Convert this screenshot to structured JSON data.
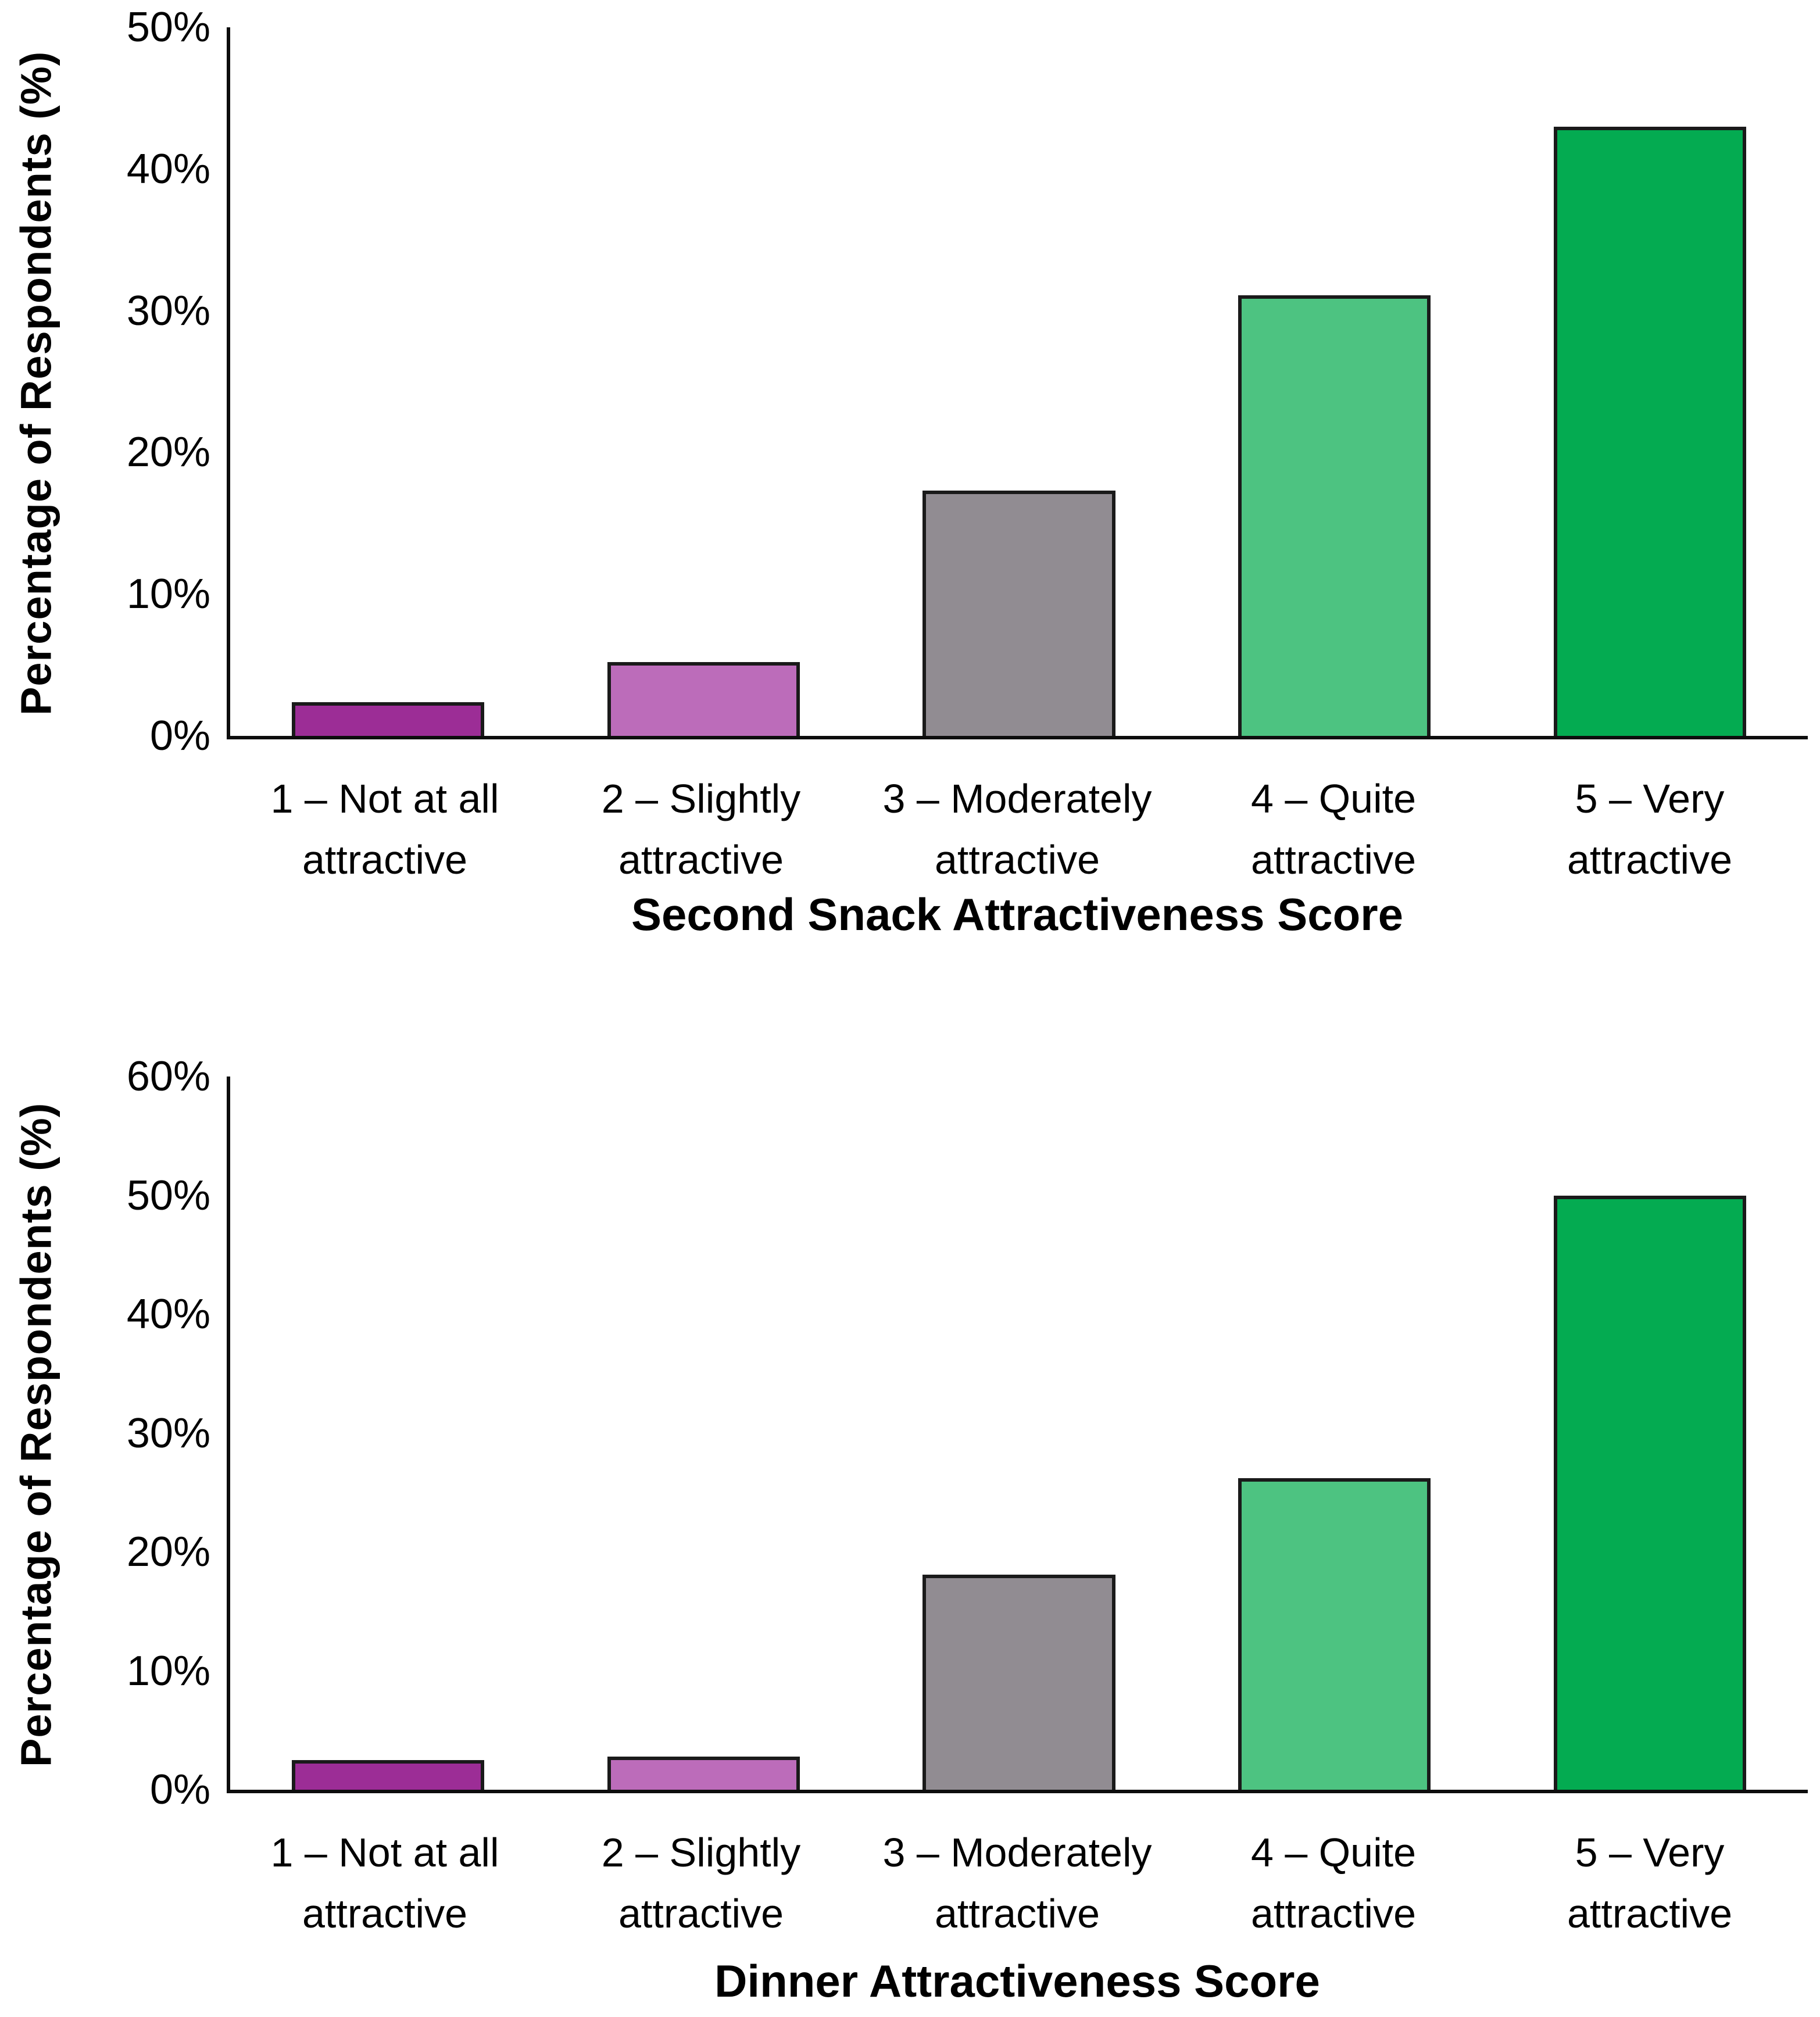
{
  "page": {
    "background": "#FFFFFF"
  },
  "chart_data": [
    {
      "type": "bar",
      "title": "",
      "xlabel": "Second Snack Attractiveness Score",
      "ylabel": "Percentage of Respondents (%)",
      "categories": [
        "1 – Not at all\nattractive",
        "2 – Slightly\nattractive",
        "3 – Moderately\nattractive",
        "4 – Quite\nattractive",
        "5 – Very\nattractive"
      ],
      "values": [
        2.4,
        5.2,
        17.3,
        31.1,
        43.0
      ],
      "unit": "%",
      "ylim": [
        0,
        50
      ],
      "tick_step": 10,
      "tick_labels": [
        "0%",
        "10%",
        "20%",
        "30%",
        "40%",
        "50%"
      ],
      "grid": false,
      "legend": "none",
      "bar_colors": [
        "#9C2D96",
        "#BC6CBA",
        "#918C92",
        "#4DC381",
        "#04AB51"
      ],
      "bar_border_color": "#1A1A1A",
      "axis_color": "#0D0D0D"
    },
    {
      "type": "bar",
      "title": "",
      "xlabel": "Dinner Attractiveness Score",
      "ylabel": "Percentage of Respondents (%)",
      "categories": [
        "1 – Not at all\nattractive",
        "2 – Slightly\nattractive",
        "3 – Moderately\nattractive",
        "4 – Quite\nattractive",
        "5 – Very\nattractive"
      ],
      "values": [
        2.5,
        2.8,
        18.1,
        26.2,
        50.0
      ],
      "unit": "%",
      "ylim": [
        0,
        60
      ],
      "tick_step": 10,
      "tick_labels": [
        "0%",
        "10%",
        "20%",
        "30%",
        "40%",
        "50%",
        "60%"
      ],
      "grid": false,
      "legend": "none",
      "bar_colors": [
        "#9C2D96",
        "#BC6CBA",
        "#918C92",
        "#4DC381",
        "#04AB51"
      ],
      "bar_border_color": "#1A1A1A",
      "axis_color": "#0D0D0D"
    }
  ]
}
